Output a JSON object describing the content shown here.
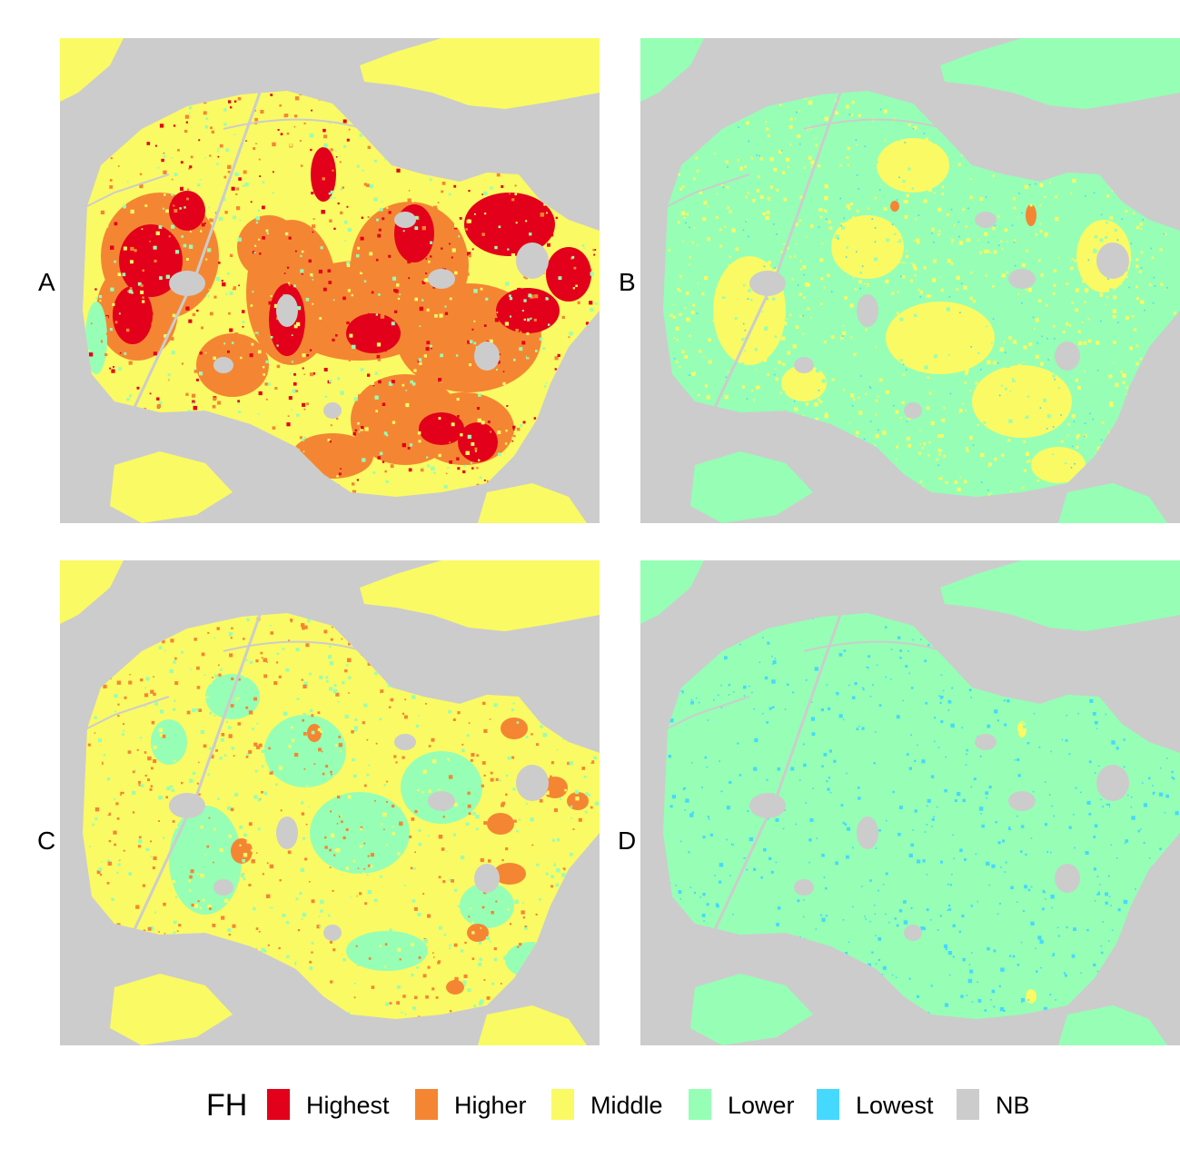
{
  "legend": {
    "title": "FH",
    "items": [
      {
        "label": "Highest",
        "color": "#e3001a"
      },
      {
        "label": "Higher",
        "color": "#f48633"
      },
      {
        "label": "Middle",
        "color": "#fafa64"
      },
      {
        "label": "Lower",
        "color": "#96ffb5"
      },
      {
        "label": "Lowest",
        "color": "#45d9ff"
      },
      {
        "label": "NB",
        "color": "#cccccc"
      }
    ]
  },
  "panels": [
    {
      "label": "A",
      "class_shares": {
        "Highest": 0.1,
        "Higher": 0.25,
        "Middle": 0.3,
        "Lower": 0.08,
        "Lowest": 0.01,
        "NB": 0.26
      }
    },
    {
      "label": "B",
      "class_shares": {
        "Highest": 0.002,
        "Higher": 0.005,
        "Middle": 0.22,
        "Lower": 0.5,
        "Lowest": 0.01,
        "NB": 0.26
      }
    },
    {
      "label": "C",
      "class_shares": {
        "Highest": 0.0,
        "Higher": 0.03,
        "Middle": 0.4,
        "Lower": 0.3,
        "Lowest": 0.01,
        "NB": 0.26
      }
    },
    {
      "label": "D",
      "class_shares": {
        "Highest": 0.0,
        "Higher": 0.002,
        "Middle": 0.01,
        "Lower": 0.7,
        "Lowest": 0.03,
        "NB": 0.26
      }
    }
  ]
}
